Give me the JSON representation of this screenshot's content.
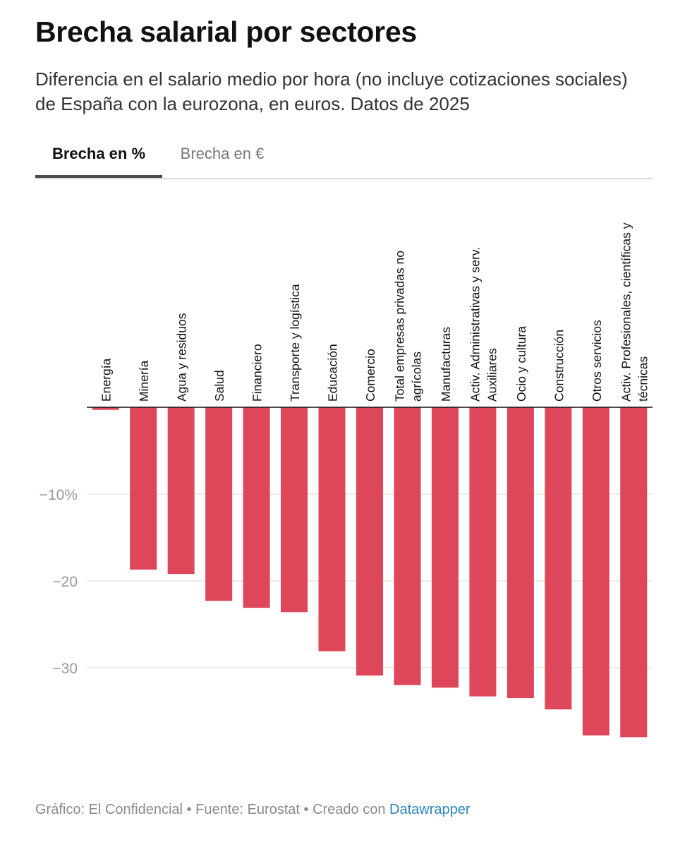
{
  "title": "Brecha salarial por sectores",
  "subtitle": "Diferencia en el salario medio por hora (no incluye cotizaciones sociales) de España con la eurozona, en euros. Datos de 2025",
  "tabs": [
    {
      "label": "Brecha en %",
      "active": true
    },
    {
      "label": "Brecha en €",
      "active": false
    }
  ],
  "footer": {
    "text": "Gráfico: El Confidencial • Fuente: Eurostat • Creado con ",
    "link": "Datawrapper"
  },
  "colors": {
    "bar": "#de4659",
    "axis": "#111111",
    "grid": "#e5e5e5",
    "tick": "#9a9a9a"
  },
  "chart_data": {
    "type": "bar",
    "categories": [
      [
        "Energía"
      ],
      [
        "Minería"
      ],
      [
        "Agua y residuos"
      ],
      [
        "Salud"
      ],
      [
        "Financiero"
      ],
      [
        "Transporte y logística"
      ],
      [
        "Educación"
      ],
      [
        "Comercio"
      ],
      [
        "Total empresas privadas no",
        "agrícolas"
      ],
      [
        "Manufacturas"
      ],
      [
        "Activ. Administrativas y serv.",
        "Auxiliares"
      ],
      [
        "Ocio y cultura"
      ],
      [
        "Construcción"
      ],
      [
        "Otros servicios"
      ],
      [
        "Activ. Profesionales, científicas y",
        "técnicas"
      ]
    ],
    "values": [
      -0.3,
      -18.7,
      -19.2,
      -22.3,
      -23.1,
      -23.6,
      -28.1,
      -30.9,
      -32.0,
      -32.3,
      -33.3,
      -33.5,
      -34.8,
      -37.8,
      -38.0
    ],
    "ylim": [
      -40,
      0
    ],
    "yticks": [
      {
        "value": -10,
        "label": "−10%"
      },
      {
        "value": -20,
        "label": "−20"
      },
      {
        "value": -30,
        "label": "−30"
      }
    ],
    "grid": true,
    "legend": "none"
  }
}
